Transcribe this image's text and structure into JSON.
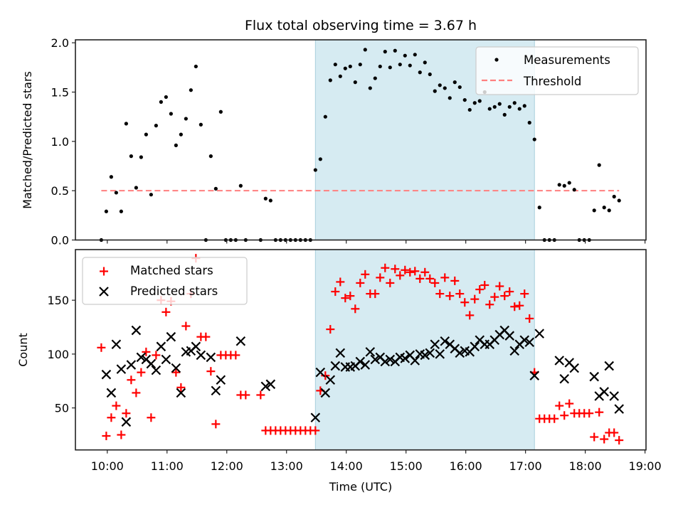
{
  "chart_data": [
    {
      "type": "scatter",
      "panel": "top",
      "title": "Flux total observing time = 3.67 h",
      "xlabel": "",
      "ylabel": "Matched/Predicted stars",
      "ylim": [
        0,
        2.03
      ],
      "yticks": [
        0.0,
        0.5,
        1.0,
        1.5,
        2.0
      ],
      "ytick_labels": [
        "0.0",
        "0.5",
        "1.0",
        "1.5",
        "2.0"
      ],
      "xlim": [
        "09:28",
        "19:01"
      ],
      "grid": false,
      "legend": {
        "position": "top-right",
        "entries": [
          "Measurements",
          "Threshold"
        ]
      },
      "highlight_span": {
        "start": "13:29",
        "end": "17:09",
        "color": "#add8e6"
      },
      "threshold": {
        "name": "Threshold",
        "value": 0.5,
        "start": "09:54",
        "end": "18:34",
        "color": "#ff7f7f",
        "style": "dashed"
      },
      "series": [
        {
          "name": "Measurements",
          "marker": "dot",
          "color": "#000000",
          "x": [
            "09:54",
            "09:59",
            "10:04",
            "10:09",
            "10:14",
            "10:19",
            "10:24",
            "10:29",
            "10:34",
            "10:39",
            "10:44",
            "10:49",
            "10:54",
            "10:59",
            "11:04",
            "11:09",
            "11:14",
            "11:19",
            "11:24",
            "11:29",
            "11:34",
            "11:39",
            "11:44",
            "11:49",
            "11:54",
            "11:59",
            "12:04",
            "12:09",
            "12:14",
            "12:19",
            "12:34",
            "12:39",
            "12:44",
            "12:49",
            "12:54",
            "12:59",
            "13:04",
            "13:09",
            "13:14",
            "13:19",
            "13:24",
            "13:29",
            "13:34",
            "13:39",
            "13:44",
            "13:49",
            "13:54",
            "13:59",
            "14:04",
            "14:09",
            "14:14",
            "14:19",
            "14:24",
            "14:29",
            "14:34",
            "14:39",
            "14:44",
            "14:49",
            "14:54",
            "14:59",
            "15:04",
            "15:09",
            "15:14",
            "15:19",
            "15:24",
            "15:29",
            "15:34",
            "15:39",
            "15:44",
            "15:49",
            "15:54",
            "15:59",
            "16:04",
            "16:09",
            "16:14",
            "16:19",
            "16:24",
            "16:29",
            "16:34",
            "16:39",
            "16:44",
            "16:49",
            "16:54",
            "16:59",
            "17:04",
            "17:09",
            "17:14",
            "17:19",
            "17:24",
            "17:29",
            "17:34",
            "17:39",
            "17:44",
            "17:49",
            "17:54",
            "17:59",
            "18:04",
            "18:09",
            "18:14",
            "18:19",
            "18:24",
            "18:29",
            "18:34"
          ],
          "y": [
            0,
            0.29,
            0.64,
            0.48,
            0.29,
            1.18,
            0.85,
            0.53,
            0.84,
            1.07,
            0.46,
            1.16,
            1.4,
            1.45,
            1.28,
            0.96,
            1.07,
            1.23,
            1.52,
            1.76,
            1.17,
            0,
            0.85,
            0.52,
            1.3,
            0,
            0,
            0,
            0.55,
            0,
            0,
            0.42,
            0.4,
            0,
            0,
            0,
            0,
            0,
            0,
            0,
            0,
            0.71,
            0.82,
            1.25,
            1.62,
            1.78,
            1.66,
            1.74,
            1.76,
            1.6,
            1.78,
            1.93,
            1.54,
            1.64,
            1.76,
            1.91,
            1.75,
            1.92,
            1.78,
            1.87,
            1.77,
            1.88,
            1.7,
            1.8,
            1.68,
            1.51,
            1.57,
            1.54,
            1.44,
            1.6,
            1.55,
            1.42,
            1.32,
            1.39,
            1.41,
            1.5,
            1.33,
            1.35,
            1.38,
            1.27,
            1.35,
            1.39,
            1.33,
            1.36,
            1.19,
            1.02,
            0.33,
            0,
            0,
            0,
            0.56,
            0.55,
            0.58,
            0.51,
            0,
            0,
            0,
            0.3,
            0.76,
            0.33,
            0.3,
            0.44,
            0.4
          ]
        }
      ]
    },
    {
      "type": "scatter",
      "panel": "bottom",
      "title": "",
      "xlabel": "Time (UTC)",
      "ylabel": "Count",
      "ylim": [
        11,
        197
      ],
      "yticks": [
        50,
        100,
        150
      ],
      "ytick_labels": [
        "50",
        "100",
        "150"
      ],
      "xlim": [
        "09:28",
        "19:01"
      ],
      "xticks": [
        "10:00",
        "11:00",
        "12:00",
        "13:00",
        "14:00",
        "15:00",
        "16:00",
        "17:00",
        "18:00",
        "19:00"
      ],
      "xtick_labels": [
        "10:00",
        "11:00",
        "12:00",
        "13:00",
        "14:00",
        "15:00",
        "16:00",
        "17:00",
        "18:00",
        "19:00"
      ],
      "grid": false,
      "legend": {
        "position": "top-left",
        "entries": [
          "Matched stars",
          "Predicted stars"
        ]
      },
      "highlight_span": {
        "start": "13:29",
        "end": "17:09",
        "color": "#add8e6"
      },
      "series": [
        {
          "name": "Matched stars",
          "marker": "plus",
          "color": "#ff0000",
          "x": [
            "09:54",
            "09:59",
            "10:04",
            "10:09",
            "10:14",
            "10:19",
            "10:24",
            "10:29",
            "10:34",
            "10:39",
            "10:44",
            "10:49",
            "10:54",
            "10:59",
            "11:04",
            "11:09",
            "11:14",
            "11:19",
            "11:24",
            "11:29",
            "11:34",
            "11:39",
            "11:44",
            "11:49",
            "11:54",
            "11:59",
            "12:04",
            "12:09",
            "12:14",
            "12:19",
            "12:34",
            "12:39",
            "12:44",
            "12:49",
            "12:54",
            "12:59",
            "13:04",
            "13:09",
            "13:14",
            "13:19",
            "13:24",
            "13:29",
            "13:34",
            "13:39",
            "13:44",
            "13:49",
            "13:54",
            "13:59",
            "14:04",
            "14:09",
            "14:14",
            "14:19",
            "14:24",
            "14:29",
            "14:34",
            "14:39",
            "14:44",
            "14:49",
            "14:54",
            "14:59",
            "15:04",
            "15:09",
            "15:14",
            "15:19",
            "15:24",
            "15:29",
            "15:34",
            "15:39",
            "15:44",
            "15:49",
            "15:54",
            "15:59",
            "16:04",
            "16:09",
            "16:14",
            "16:19",
            "16:24",
            "16:29",
            "16:34",
            "16:39",
            "16:44",
            "16:49",
            "16:54",
            "16:59",
            "17:04",
            "17:09",
            "17:14",
            "17:19",
            "17:24",
            "17:29",
            "17:34",
            "17:39",
            "17:44",
            "17:49",
            "17:54",
            "17:59",
            "18:04",
            "18:09",
            "18:14",
            "18:19",
            "18:24",
            "18:29",
            "18:34"
          ],
          "y": [
            106,
            24,
            41,
            52,
            25,
            45,
            76,
            64,
            83,
            102,
            41,
            99,
            150,
            139,
            149,
            83,
            69,
            126,
            156,
            189,
            116,
            116,
            84,
            35,
            99,
            99,
            99,
            99,
            62,
            62,
            62,
            29,
            29,
            29,
            29,
            29,
            29,
            29,
            29,
            29,
            29,
            29,
            66,
            80,
            123,
            158,
            167,
            152,
            154,
            142,
            166,
            174,
            156,
            156,
            171,
            180,
            166,
            179,
            173,
            178,
            176,
            177,
            170,
            176,
            170,
            166,
            156,
            171,
            154,
            168,
            156,
            148,
            136,
            151,
            160,
            164,
            146,
            153,
            163,
            154,
            158,
            144,
            145,
            156,
            133,
            83,
            40,
            40,
            40,
            40,
            52,
            43,
            54,
            45,
            45,
            45,
            45,
            23,
            46,
            21,
            27,
            27,
            20
          ]
        },
        {
          "name": "Predicted stars",
          "marker": "x",
          "color": "#000000",
          "x": [
            "09:59",
            "10:04",
            "10:09",
            "10:14",
            "10:19",
            "10:24",
            "10:29",
            "10:34",
            "10:39",
            "10:44",
            "10:49",
            "10:54",
            "10:59",
            "11:04",
            "11:09",
            "11:14",
            "11:19",
            "11:24",
            "11:29",
            "11:34",
            "11:44",
            "11:49",
            "11:54",
            "12:14",
            "12:39",
            "12:44",
            "13:29",
            "13:34",
            "13:39",
            "13:44",
            "13:49",
            "13:54",
            "13:59",
            "14:04",
            "14:09",
            "14:14",
            "14:19",
            "14:24",
            "14:29",
            "14:34",
            "14:39",
            "14:44",
            "14:49",
            "14:54",
            "14:59",
            "15:04",
            "15:09",
            "15:14",
            "15:19",
            "15:24",
            "15:29",
            "15:34",
            "15:39",
            "15:44",
            "15:49",
            "15:54",
            "15:59",
            "16:04",
            "16:09",
            "16:14",
            "16:19",
            "16:24",
            "16:29",
            "16:34",
            "16:39",
            "16:44",
            "16:49",
            "16:54",
            "16:59",
            "17:04",
            "17:09",
            "17:14",
            "17:34",
            "17:39",
            "17:44",
            "17:49",
            "18:09",
            "18:14",
            "18:19",
            "18:24",
            "18:29",
            "18:34"
          ],
          "y": [
            81,
            64,
            109,
            86,
            37,
            90,
            122,
            97,
            95,
            91,
            85,
            107,
            95,
            116,
            87,
            64,
            102,
            103,
            107,
            99,
            97,
            66,
            76,
            112,
            70,
            72,
            41,
            83,
            64,
            76,
            89,
            101,
            88,
            88,
            89,
            93,
            90,
            102,
            95,
            97,
            93,
            95,
            93,
            97,
            96,
            99,
            94,
            100,
            99,
            101,
            109,
            100,
            112,
            109,
            105,
            101,
            103,
            102,
            107,
            113,
            109,
            109,
            113,
            118,
            122,
            117,
            103,
            109,
            113,
            111,
            80,
            119,
            94,
            77,
            92,
            87,
            79,
            61,
            65,
            89,
            61,
            49
          ]
        }
      ]
    }
  ]
}
